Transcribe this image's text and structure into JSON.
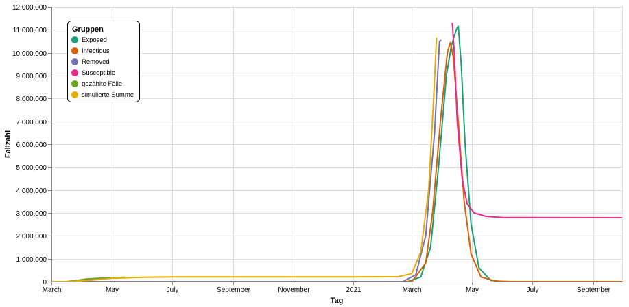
{
  "chart_data": {
    "type": "line",
    "xlabel": "Tag",
    "ylabel": "Fallzahl",
    "ylim": [
      0,
      12000000
    ],
    "x_domain": [
      "2020-03-01",
      "2021-09-30"
    ],
    "y_ticks": [
      "0",
      "1,000,000",
      "2,000,000",
      "3,000,000",
      "4,000,000",
      "5,000,000",
      "6,000,000",
      "7,000,000",
      "8,000,000",
      "9,000,000",
      "10,000,000",
      "11,000,000",
      "12,000,000"
    ],
    "x_ticks": [
      {
        "date": "2020-03-01",
        "label": "March"
      },
      {
        "date": "2020-05-01",
        "label": "May"
      },
      {
        "date": "2020-07-01",
        "label": "July"
      },
      {
        "date": "2020-09-01",
        "label": "September"
      },
      {
        "date": "2020-11-01",
        "label": "November"
      },
      {
        "date": "2021-01-01",
        "label": "2021"
      },
      {
        "date": "2021-03-01",
        "label": "March"
      },
      {
        "date": "2021-05-01",
        "label": "May"
      },
      {
        "date": "2021-07-01",
        "label": "July"
      },
      {
        "date": "2021-09-01",
        "label": "September"
      }
    ],
    "grid": true,
    "legend": {
      "title": "Gruppen",
      "position": "top-left"
    },
    "series": [
      {
        "name": "Exposed",
        "color": "#1b9e77",
        "points": [
          [
            "2020-03-01",
            0
          ],
          [
            "2021-02-25",
            0
          ],
          [
            "2021-03-10",
            200000
          ],
          [
            "2021-03-20",
            1500000
          ],
          [
            "2021-03-28",
            5000000
          ],
          [
            "2021-04-05",
            9000000
          ],
          [
            "2021-04-10",
            10300000
          ],
          [
            "2021-04-15",
            11000000
          ],
          [
            "2021-04-17",
            11150000
          ],
          [
            "2021-04-20",
            9500000
          ],
          [
            "2021-04-24",
            6000000
          ],
          [
            "2021-04-30",
            2500000
          ],
          [
            "2021-05-08",
            600000
          ],
          [
            "2021-05-20",
            50000
          ],
          [
            "2021-06-01",
            0
          ],
          [
            "2021-09-30",
            0
          ]
        ]
      },
      {
        "name": "Infectious",
        "color": "#d95f02",
        "points": [
          [
            "2020-03-01",
            0
          ],
          [
            "2021-03-01",
            0
          ],
          [
            "2021-03-15",
            800000
          ],
          [
            "2021-03-22",
            3000000
          ],
          [
            "2021-03-30",
            7000000
          ],
          [
            "2021-04-06",
            10000000
          ],
          [
            "2021-04-09",
            10450000
          ],
          [
            "2021-04-12",
            9800000
          ],
          [
            "2021-04-17",
            7000000
          ],
          [
            "2021-04-23",
            3500000
          ],
          [
            "2021-04-30",
            1200000
          ],
          [
            "2021-05-10",
            200000
          ],
          [
            "2021-05-25",
            20000
          ],
          [
            "2021-06-10",
            0
          ],
          [
            "2021-09-30",
            0
          ]
        ]
      },
      {
        "name": "Removed",
        "color": "#7570b3",
        "points": [
          [
            "2020-03-01",
            0
          ],
          [
            "2021-02-20",
            0
          ],
          [
            "2021-03-05",
            300000
          ],
          [
            "2021-03-15",
            2000000
          ],
          [
            "2021-03-24",
            6500000
          ],
          [
            "2021-03-29",
            10500000
          ],
          [
            "2021-03-31",
            10550000
          ]
        ]
      },
      {
        "name": "Susceptible",
        "color": "#e7298a",
        "points": [
          [
            "2021-04-11",
            11300000
          ],
          [
            "2021-04-13",
            10000000
          ],
          [
            "2021-04-16",
            7000000
          ],
          [
            "2021-04-21",
            4500000
          ],
          [
            "2021-04-26",
            3400000
          ],
          [
            "2021-05-03",
            3000000
          ],
          [
            "2021-05-15",
            2850000
          ],
          [
            "2021-06-01",
            2800000
          ],
          [
            "2021-09-30",
            2790000
          ]
        ]
      },
      {
        "name": "gezählte Fälle",
        "color": "#66a61e",
        "points": [
          [
            "2020-03-01",
            0
          ],
          [
            "2020-03-15",
            0
          ],
          [
            "2020-03-25",
            40000
          ],
          [
            "2020-04-05",
            110000
          ],
          [
            "2020-04-20",
            150000
          ],
          [
            "2020-05-05",
            175000
          ],
          [
            "2020-05-15",
            185000
          ]
        ]
      },
      {
        "name": "simulierte Summe",
        "color": "#e6ab02",
        "points": [
          [
            "2020-03-01",
            0
          ],
          [
            "2020-03-20",
            0
          ],
          [
            "2020-04-10",
            60000
          ],
          [
            "2020-05-01",
            140000
          ],
          [
            "2020-06-01",
            185000
          ],
          [
            "2020-07-01",
            200000
          ],
          [
            "2020-09-01",
            205000
          ],
          [
            "2020-11-01",
            205000
          ],
          [
            "2021-01-01",
            205000
          ],
          [
            "2021-02-15",
            210000
          ],
          [
            "2021-03-01",
            350000
          ],
          [
            "2021-03-10",
            1300000
          ],
          [
            "2021-03-18",
            4000000
          ],
          [
            "2021-03-23",
            8000000
          ],
          [
            "2021-03-26",
            10650000
          ]
        ]
      }
    ]
  }
}
